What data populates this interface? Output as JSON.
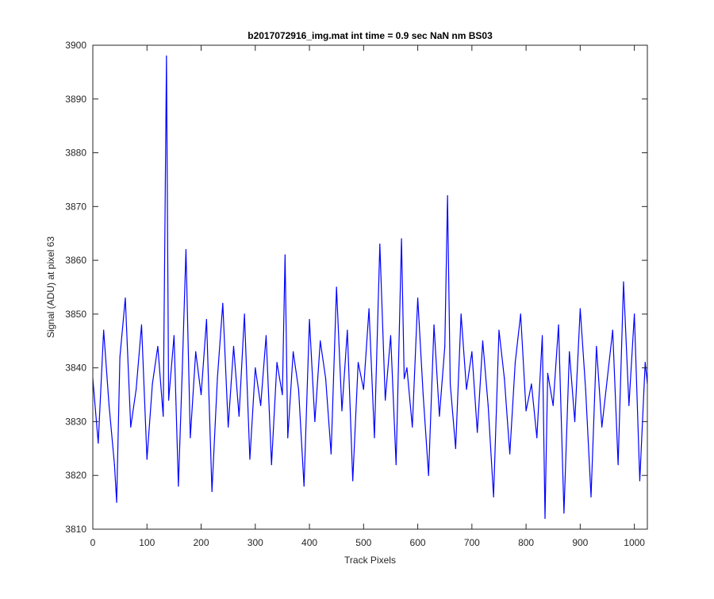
{
  "chart_data": {
    "type": "line",
    "title": "b2017072916_img.mat int time = 0.9 sec  NaN nm BS03",
    "xlabel": "Track Pixels",
    "ylabel": "Signal (ADU) at pixel 63",
    "xlim": [
      0,
      1024
    ],
    "ylim": [
      3810,
      3900
    ],
    "xticks": [
      0,
      100,
      200,
      300,
      400,
      500,
      600,
      700,
      800,
      900,
      1000
    ],
    "yticks": [
      3810,
      3820,
      3830,
      3840,
      3850,
      3860,
      3870,
      3880,
      3890,
      3900
    ],
    "grid": false,
    "legend": "none",
    "series": [
      {
        "color": "#0000ff",
        "x": [
          0,
          10,
          20,
          30,
          40,
          44,
          50,
          60,
          70,
          80,
          90,
          100,
          110,
          120,
          130,
          136,
          140,
          150,
          158,
          165,
          172,
          180,
          190,
          200,
          210,
          220,
          230,
          240,
          250,
          260,
          270,
          280,
          290,
          300,
          310,
          320,
          330,
          340,
          350,
          355,
          360,
          370,
          380,
          390,
          400,
          410,
          420,
          430,
          440,
          450,
          460,
          470,
          480,
          490,
          500,
          510,
          520,
          530,
          540,
          550,
          560,
          570,
          575,
          580,
          590,
          600,
          610,
          620,
          630,
          640,
          650,
          655,
          660,
          670,
          680,
          690,
          700,
          710,
          720,
          730,
          740,
          750,
          760,
          770,
          780,
          790,
          800,
          810,
          820,
          830,
          835,
          840,
          850,
          860,
          870,
          880,
          890,
          900,
          910,
          920,
          930,
          940,
          950,
          960,
          970,
          980,
          990,
          1000,
          1010,
          1020,
          1024
        ],
        "y": [
          3838,
          3826,
          3847,
          3833,
          3822,
          3815,
          3842,
          3853,
          3829,
          3836,
          3848,
          3823,
          3837,
          3844,
          3831,
          3898,
          3834,
          3846,
          3818,
          3839,
          3862,
          3827,
          3843,
          3835,
          3849,
          3817,
          3838,
          3852,
          3829,
          3844,
          3831,
          3850,
          3823,
          3840,
          3833,
          3846,
          3822,
          3841,
          3835,
          3861,
          3827,
          3843,
          3836,
          3818,
          3849,
          3830,
          3845,
          3838,
          3824,
          3855,
          3832,
          3847,
          3819,
          3841,
          3836,
          3851,
          3827,
          3863,
          3834,
          3846,
          3822,
          3864,
          3838,
          3840,
          3829,
          3853,
          3835,
          3820,
          3848,
          3831,
          3844,
          3872,
          3837,
          3825,
          3850,
          3836,
          3843,
          3828,
          3845,
          3833,
          3816,
          3847,
          3838,
          3824,
          3841,
          3850,
          3832,
          3837,
          3827,
          3846,
          3812,
          3839,
          3833,
          3848,
          3813,
          3843,
          3830,
          3851,
          3836,
          3816,
          3844,
          3829,
          3838,
          3847,
          3822,
          3856,
          3833,
          3850,
          3819,
          3841,
          3837
        ]
      }
    ]
  }
}
